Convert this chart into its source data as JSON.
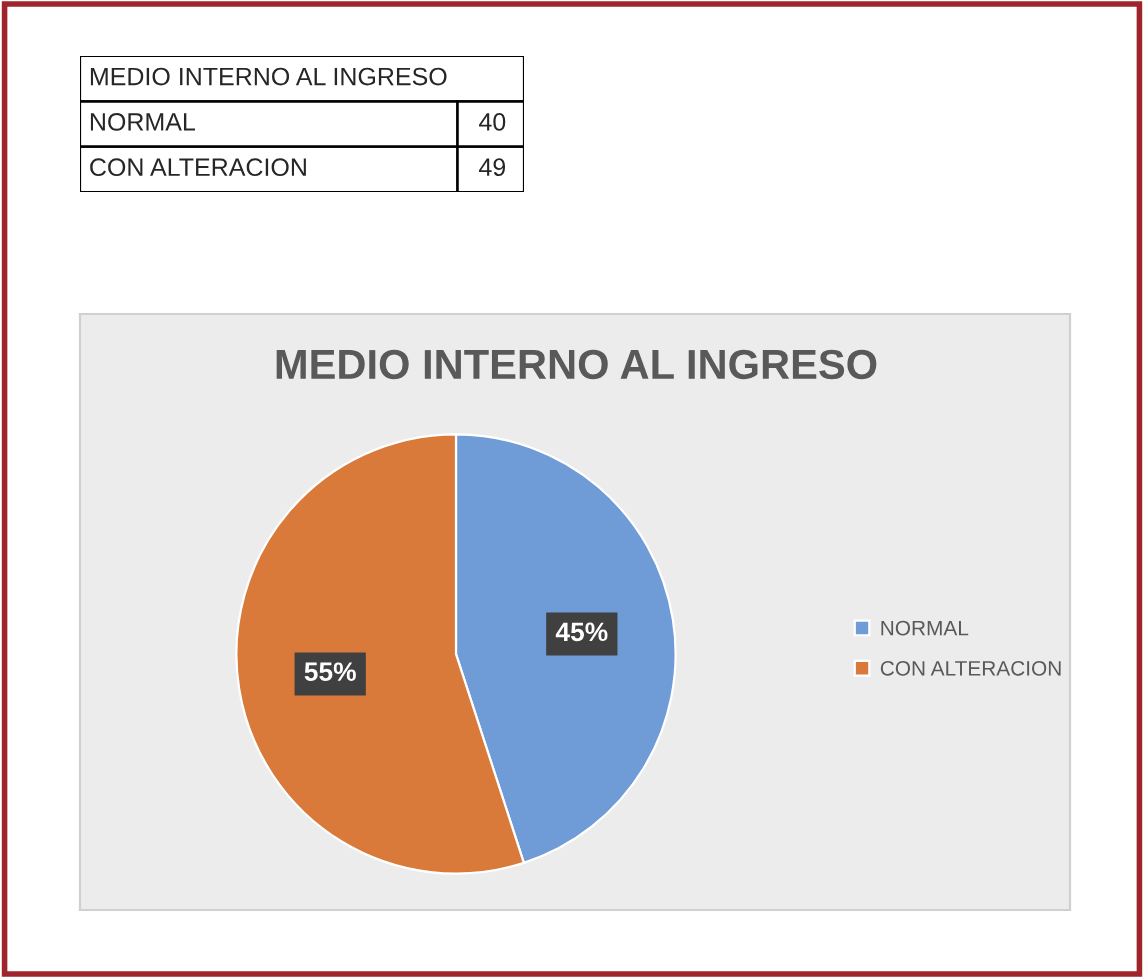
{
  "chart_data": {
    "type": "pie",
    "title": "MEDIO INTERNO AL INGRESO",
    "annotations": [
      "MEDIO INTERNO AL INGRESO",
      "NORMAL",
      "40",
      "CON ALTERACION",
      "49"
    ],
    "categories": [
      "NORMAL",
      "CON ALTERACION"
    ],
    "values": [
      45,
      55
    ],
    "colors": [
      "#6f9bd6",
      "#d97a3a"
    ],
    "value_labels": [
      "45%",
      "55%"
    ],
    "legend": "right"
  }
}
